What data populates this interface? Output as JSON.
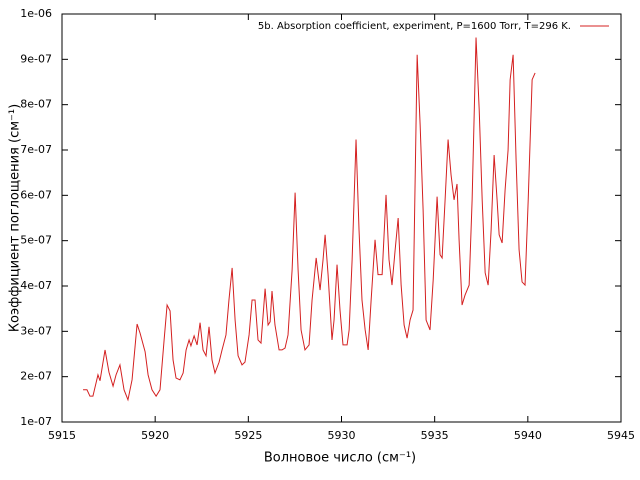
{
  "chart_data": {
    "type": "line",
    "xlabel": "Волновое число (см⁻¹)",
    "ylabel": "Коэффициент поглощения (см⁻¹)",
    "xlim": [
      5915,
      5945
    ],
    "xticks": [
      5915,
      5920,
      5925,
      5930,
      5935,
      5940,
      5945
    ],
    "ylim": [
      1e-07,
      1e-06
    ],
    "yticks": [
      {
        "value": 1e-07,
        "label": "1e-07"
      },
      {
        "value": 2e-07,
        "label": "2e-07"
      },
      {
        "value": 3e-07,
        "label": "3e-07"
      },
      {
        "value": 4e-07,
        "label": "4e-07"
      },
      {
        "value": 5e-07,
        "label": "5e-07"
      },
      {
        "value": 6e-07,
        "label": "6e-07"
      },
      {
        "value": 7e-07,
        "label": "7e-07"
      },
      {
        "value": 8e-07,
        "label": "8e-07"
      },
      {
        "value": 9e-07,
        "label": "9e-07"
      },
      {
        "value": 1e-06,
        "label": "1e-06"
      }
    ],
    "legend": "top-right",
    "x": [
      5916.13,
      5916.34,
      5916.5,
      5916.66,
      5916.93,
      5917.04,
      5917.31,
      5917.52,
      5917.74,
      5917.9,
      5918.11,
      5918.33,
      5918.54,
      5918.76,
      5919.03,
      5919.19,
      5919.46,
      5919.62,
      5919.83,
      5920.05,
      5920.26,
      5920.48,
      5920.64,
      5920.8,
      5920.96,
      5921.12,
      5921.33,
      5921.5,
      5921.66,
      5921.82,
      5921.92,
      5922.09,
      5922.25,
      5922.41,
      5922.57,
      5922.73,
      5922.89,
      5923.05,
      5923.21,
      5923.43,
      5923.59,
      5923.8,
      5923.96,
      5924.13,
      5924.29,
      5924.45,
      5924.66,
      5924.82,
      5925.04,
      5925.2,
      5925.36,
      5925.52,
      5925.68,
      5925.9,
      5926.06,
      5926.17,
      5926.27,
      5926.43,
      5926.65,
      5926.81,
      5926.97,
      5927.13,
      5927.35,
      5927.51,
      5927.67,
      5927.83,
      5928.04,
      5928.26,
      5928.42,
      5928.64,
      5928.85,
      5929.01,
      5929.12,
      5929.28,
      5929.49,
      5929.6,
      5929.76,
      5929.92,
      5930.08,
      5930.3,
      5930.41,
      5930.57,
      5930.78,
      5930.94,
      5931.1,
      5931.27,
      5931.43,
      5931.59,
      5931.8,
      5931.96,
      5932.18,
      5932.39,
      5932.55,
      5932.71,
      5932.88,
      5933.04,
      5933.2,
      5933.36,
      5933.52,
      5933.68,
      5933.84,
      5934.06,
      5934.22,
      5934.38,
      5934.54,
      5934.75,
      5934.92,
      5935.13,
      5935.29,
      5935.4,
      5935.56,
      5935.72,
      5935.88,
      5936.04,
      5936.2,
      5936.31,
      5936.47,
      5936.63,
      5936.85,
      5937.01,
      5937.22,
      5937.39,
      5937.55,
      5937.71,
      5937.87,
      5938.03,
      5938.19,
      5938.35,
      5938.46,
      5938.62,
      5938.78,
      5938.94,
      5939.05,
      5939.21,
      5939.37,
      5939.53,
      5939.69,
      5939.85,
      5940.02,
      5940.23,
      5940.39
    ],
    "series": [
      {
        "name": "5b. Absorption coefficient, experiment, P=1600 Torr, T=296 K.",
        "color": "#d42020",
        "values": [
          1.71e-07,
          1.71e-07,
          1.57e-07,
          1.57e-07,
          2.04e-07,
          1.91e-07,
          2.59e-07,
          2.1e-07,
          1.79e-07,
          2.04e-07,
          2.26e-07,
          1.71e-07,
          1.49e-07,
          1.93e-07,
          3.16e-07,
          2.96e-07,
          2.55e-07,
          2.04e-07,
          1.71e-07,
          1.57e-07,
          1.71e-07,
          2.81e-07,
          3.58e-07,
          3.45e-07,
          2.37e-07,
          1.97e-07,
          1.93e-07,
          2.08e-07,
          2.59e-07,
          2.81e-07,
          2.68e-07,
          2.9e-07,
          2.7e-07,
          3.19e-07,
          2.59e-07,
          2.46e-07,
          3.1e-07,
          2.37e-07,
          2.08e-07,
          2.32e-07,
          2.59e-07,
          2.92e-07,
          3.69e-07,
          4.4e-07,
          3.25e-07,
          2.46e-07,
          2.26e-07,
          2.32e-07,
          2.92e-07,
          3.69e-07,
          3.69e-07,
          2.81e-07,
          2.74e-07,
          3.94e-07,
          3.14e-07,
          3.21e-07,
          3.89e-07,
          3.14e-07,
          2.59e-07,
          2.59e-07,
          2.63e-07,
          2.92e-07,
          4.36e-07,
          6.06e-07,
          4.36e-07,
          3.03e-07,
          2.59e-07,
          2.7e-07,
          3.69e-07,
          4.62e-07,
          3.91e-07,
          4.58e-07,
          5.13e-07,
          4.25e-07,
          2.81e-07,
          3.25e-07,
          4.47e-07,
          3.47e-07,
          2.7e-07,
          2.7e-07,
          3.03e-07,
          4.58e-07,
          7.23e-07,
          5.24e-07,
          3.69e-07,
          3.03e-07,
          2.59e-07,
          3.69e-07,
          5.02e-07,
          4.25e-07,
          4.25e-07,
          6.01e-07,
          4.58e-07,
          4.02e-07,
          4.8e-07,
          5.5e-07,
          4.02e-07,
          3.14e-07,
          2.85e-07,
          3.25e-07,
          3.47e-07,
          9.1e-07,
          7.56e-07,
          5.68e-07,
          3.25e-07,
          3.03e-07,
          4.13e-07,
          5.97e-07,
          4.69e-07,
          4.62e-07,
          5.9e-07,
          7.23e-07,
          6.45e-07,
          5.9e-07,
          6.25e-07,
          5.02e-07,
          3.58e-07,
          3.8e-07,
          4.02e-07,
          5.9e-07,
          9.48e-07,
          7.89e-07,
          5.9e-07,
          4.29e-07,
          4.02e-07,
          5.24e-07,
          6.89e-07,
          5.9e-07,
          5.13e-07,
          4.95e-07,
          6.12e-07,
          7e-07,
          8.55e-07,
          9.1e-07,
          6.78e-07,
          4.8e-07,
          4.09e-07,
          4.02e-07,
          5.9e-07,
          8.55e-07,
          8.7e-07
        ]
      }
    ]
  }
}
